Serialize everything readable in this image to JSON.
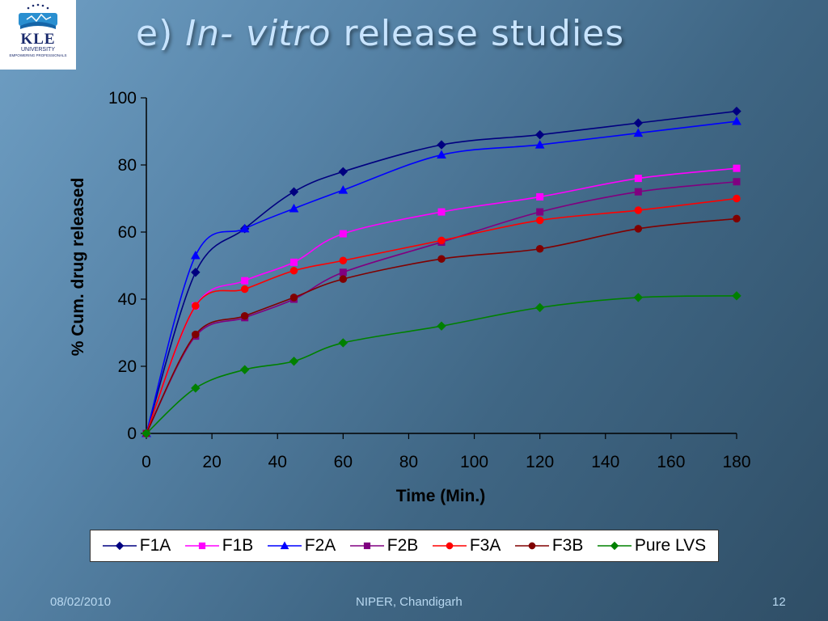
{
  "logo": {
    "name": "KLE",
    "subtitle": "UNIVERSITY",
    "tagline": "EMPOWERING PROFESSIONALS"
  },
  "slide": {
    "title_prefix": "e)",
    "title_italic": "In- vitro",
    "title_suffix": "release studies"
  },
  "footer": {
    "date": "08/02/2010",
    "center": "NIPER, Chandigarh",
    "page": "12"
  },
  "chart_data": {
    "type": "line",
    "title": "",
    "xlabel": "Time (Min.)",
    "ylabel": "% Cum. drug released",
    "xlim": [
      0,
      180
    ],
    "ylim": [
      0,
      100
    ],
    "xticks": [
      0,
      20,
      40,
      60,
      80,
      100,
      120,
      140,
      160,
      180
    ],
    "yticks": [
      0,
      20,
      40,
      60,
      80,
      100
    ],
    "grid": false,
    "legend_position": "bottom",
    "x": [
      0,
      15,
      30,
      45,
      60,
      90,
      120,
      150,
      180
    ],
    "series": [
      {
        "name": "F1A",
        "color": "#000080",
        "marker": "diamond",
        "values": [
          0,
          48,
          61,
          72,
          78,
          86,
          89,
          92.5,
          96
        ]
      },
      {
        "name": "F1B",
        "color": "#ff00ff",
        "marker": "square",
        "values": [
          0,
          38,
          45.5,
          51,
          59.5,
          66,
          70.5,
          76,
          79
        ]
      },
      {
        "name": "F2A",
        "color": "#0000ff",
        "marker": "triangle",
        "values": [
          0,
          53,
          61,
          67,
          72.5,
          83,
          86,
          89.5,
          93
        ]
      },
      {
        "name": "F2B",
        "color": "#800080",
        "marker": "square",
        "values": [
          0,
          29,
          34.5,
          40,
          48,
          57,
          66,
          72,
          75
        ]
      },
      {
        "name": "F3A",
        "color": "#ff0000",
        "marker": "circle",
        "values": [
          0,
          38,
          43,
          48.5,
          51.5,
          57.5,
          63.5,
          66.5,
          70
        ]
      },
      {
        "name": "F3B",
        "color": "#800000",
        "marker": "circle",
        "values": [
          0,
          29.5,
          35,
          40.5,
          46,
          52,
          55,
          61,
          64
        ]
      },
      {
        "name": "Pure LVS",
        "color": "#008000",
        "marker": "diamond",
        "values": [
          0,
          13.5,
          19,
          21.5,
          27,
          32,
          37.5,
          40.5,
          41
        ]
      }
    ]
  }
}
